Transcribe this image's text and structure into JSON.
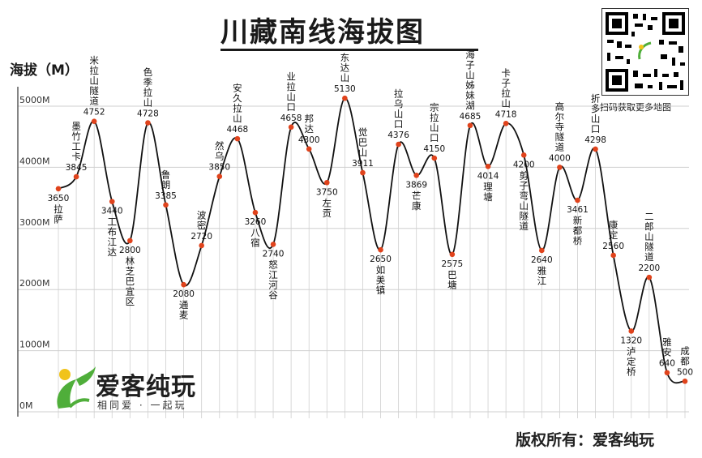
{
  "title": "川藏南线海拔图",
  "y_axis_label": "海拔（M）",
  "qr_caption": "扫码获取更多地图",
  "copyright": "版权所有：爱客纯玩",
  "brand": {
    "name": "爱客纯玩",
    "slogan": "相同爱 · 一起玩"
  },
  "colors": {
    "line": "#111111",
    "point": "#e0431c",
    "grid": "#cfcfcf",
    "axis": "#333333",
    "brand_green": "#4fae3a",
    "brand_yellow": "#f1c31a"
  },
  "chart_data": {
    "type": "line",
    "ylabel": "海拔（M）",
    "ylim": [
      0,
      5000
    ],
    "y_ticks": [
      {
        "value": 0,
        "label": "0M"
      },
      {
        "value": 1000,
        "label": "1000M"
      },
      {
        "value": 2000,
        "label": "2000M"
      },
      {
        "value": 3000,
        "label": "3000M"
      },
      {
        "value": 4000,
        "label": "4000M"
      },
      {
        "value": 5000,
        "label": "5000M"
      }
    ],
    "grid": true,
    "points": [
      {
        "name": "拉萨",
        "elevation": 3650,
        "label": "3650",
        "side": "below"
      },
      {
        "name": "墨竹工卡",
        "elevation": 3845,
        "label": "3845",
        "side": "above"
      },
      {
        "name": "米拉山隧道",
        "elevation": 4752,
        "label": "4752",
        "side": "above"
      },
      {
        "name": "工布江达",
        "elevation": 3440,
        "label": "3440",
        "side": "below"
      },
      {
        "name": "林芝巴宜区",
        "elevation": 2800,
        "label": "2800",
        "side": "below"
      },
      {
        "name": "色季拉山",
        "elevation": 4728,
        "label": "4728",
        "side": "above"
      },
      {
        "name": "鲁朗",
        "elevation": 3385,
        "label": "3385",
        "side": "above"
      },
      {
        "name": "通麦",
        "elevation": 2080,
        "label": "2080",
        "side": "below"
      },
      {
        "name": "波密",
        "elevation": 2720,
        "label": "2720",
        "side": "above"
      },
      {
        "name": "然乌",
        "elevation": 3850,
        "label": "3850",
        "side": "above"
      },
      {
        "name": "安久拉山",
        "elevation": 4468,
        "label": "4468",
        "side": "above"
      },
      {
        "name": "八宿",
        "elevation": 3260,
        "label": "3260",
        "side": "below"
      },
      {
        "name": "怒江河谷",
        "elevation": 2740,
        "label": "2740",
        "side": "below"
      },
      {
        "name": "业拉山口",
        "elevation": 4658,
        "label": "4658",
        "side": "above"
      },
      {
        "name": "邦达",
        "elevation": 4300,
        "label": "4300",
        "side": "above"
      },
      {
        "name": "左贡",
        "elevation": 3750,
        "label": "3750",
        "side": "below"
      },
      {
        "name": "东达山",
        "elevation": 5130,
        "label": "5130",
        "side": "above"
      },
      {
        "name": "觉巴山",
        "elevation": 3911,
        "label": "3911",
        "side": "above"
      },
      {
        "name": "如美镇",
        "elevation": 2650,
        "label": "2650",
        "side": "below"
      },
      {
        "name": "拉乌山口",
        "elevation": 4376,
        "label": "4376",
        "side": "above"
      },
      {
        "name": "芒康",
        "elevation": 3869,
        "label": "3869",
        "side": "below"
      },
      {
        "name": "宗拉山口",
        "elevation": 4150,
        "label": "4150",
        "side": "above"
      },
      {
        "name": "巴塘",
        "elevation": 2575,
        "label": "2575",
        "side": "below"
      },
      {
        "name": "海子山姊妹湖",
        "elevation": 4685,
        "label": "4685",
        "side": "above"
      },
      {
        "name": "理塘",
        "elevation": 4014,
        "label": "4014",
        "side": "below"
      },
      {
        "name": "卡子拉山",
        "elevation": 4718,
        "label": "4718",
        "side": "above"
      },
      {
        "name": "剪子弯山隧道",
        "elevation": 4200,
        "label": "4200",
        "side": "below"
      },
      {
        "name": "雅江",
        "elevation": 2640,
        "label": "2640",
        "side": "below"
      },
      {
        "name": "高尔寺隧道",
        "elevation": 4000,
        "label": "4000",
        "side": "above"
      },
      {
        "name": "新都桥",
        "elevation": 3461,
        "label": "3461",
        "side": "below"
      },
      {
        "name": "折多山口",
        "elevation": 4298,
        "label": "4298",
        "side": "above"
      },
      {
        "name": "康定",
        "elevation": 2560,
        "label": "2560",
        "side": "above"
      },
      {
        "name": "泸定桥",
        "elevation": 1320,
        "label": "1320",
        "side": "below"
      },
      {
        "name": "二郎山隧道",
        "elevation": 2200,
        "label": "2200",
        "side": "above"
      },
      {
        "name": "雅安",
        "elevation": 640,
        "label": "640",
        "side": "above"
      },
      {
        "name": "成都",
        "elevation": 500,
        "label": "500",
        "side": "above"
      }
    ]
  }
}
